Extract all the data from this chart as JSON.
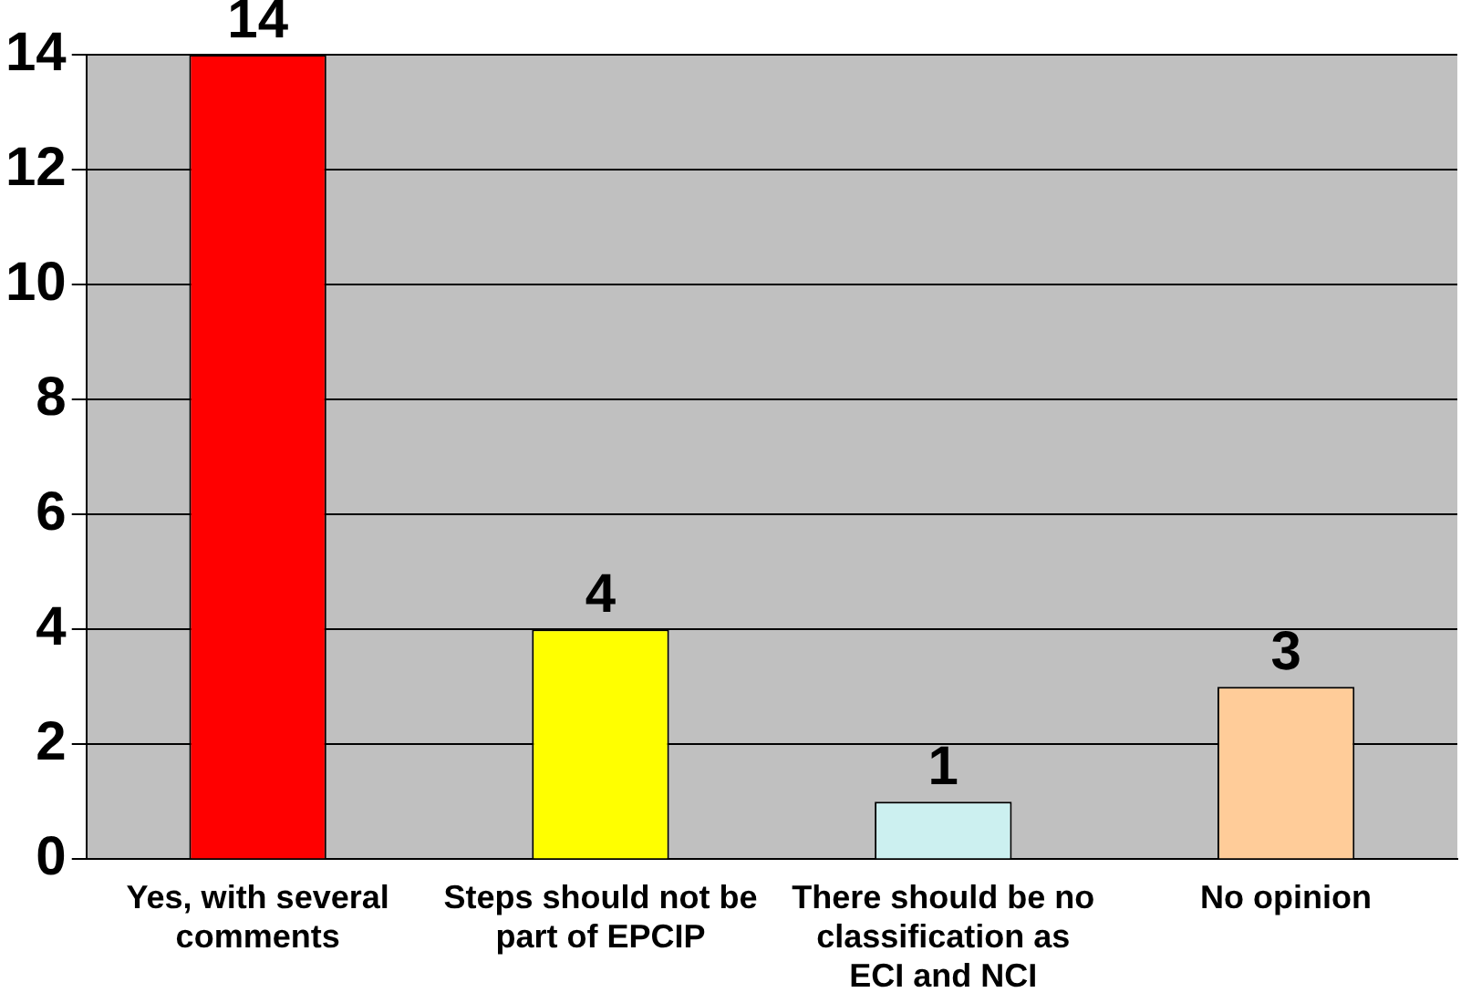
{
  "chart_data": {
    "type": "bar",
    "categories": [
      "Yes, with several comments",
      "Steps should not be part of EPCIP",
      "There should be no classification as ECI and NCI",
      "No opinion"
    ],
    "values": [
      14,
      4,
      1,
      3
    ],
    "colors": [
      "#ff0000",
      "#ffff00",
      "#ccf0f0",
      "#ffcc99"
    ],
    "ylim": [
      0,
      14
    ],
    "yticks": [
      0,
      2,
      4,
      6,
      8,
      10,
      12,
      14
    ],
    "grid": "y",
    "data_labels": true,
    "legend": false
  }
}
